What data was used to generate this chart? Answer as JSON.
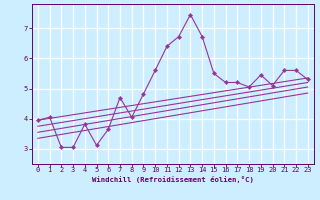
{
  "bg_color": "#cceeff",
  "line_color": "#993399",
  "grid_color": "#aadddd",
  "xlabel": "Windchill (Refroidissement éolien,°C)",
  "xlabel_color": "#660066",
  "tick_color": "#660066",
  "ylim": [
    2.5,
    7.8
  ],
  "xlim": [
    -0.5,
    23.5
  ],
  "yticks": [
    3,
    4,
    5,
    6,
    7
  ],
  "xticks": [
    0,
    1,
    2,
    3,
    4,
    5,
    6,
    7,
    8,
    9,
    10,
    11,
    12,
    13,
    14,
    15,
    16,
    17,
    18,
    19,
    20,
    21,
    22,
    23
  ],
  "main_line": {
    "x": [
      0,
      1,
      2,
      3,
      4,
      5,
      6,
      7,
      8,
      9,
      10,
      11,
      12,
      13,
      14,
      15,
      16,
      17,
      18,
      19,
      20,
      21,
      22,
      23
    ],
    "y": [
      3.95,
      4.05,
      3.05,
      3.05,
      3.82,
      3.12,
      3.65,
      4.7,
      4.05,
      4.82,
      5.6,
      6.4,
      6.72,
      7.45,
      6.72,
      5.5,
      5.2,
      5.2,
      5.05,
      5.45,
      5.1,
      5.6,
      5.6,
      5.3
    ]
  },
  "reg_lines": [
    {
      "x0": 0,
      "y0": 3.95,
      "x1": 23,
      "y1": 5.35
    },
    {
      "x0": 0,
      "y0": 3.75,
      "x1": 23,
      "y1": 5.2
    },
    {
      "x0": 0,
      "y0": 3.55,
      "x1": 23,
      "y1": 5.05
    },
    {
      "x0": 0,
      "y0": 3.35,
      "x1": 23,
      "y1": 4.85
    }
  ]
}
